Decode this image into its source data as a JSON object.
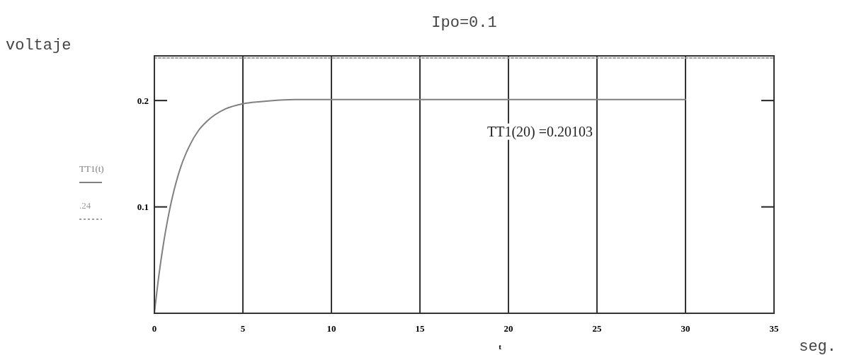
{
  "chart_data": {
    "type": "line",
    "title": "Ipo=0.1",
    "ylabel": "voltaje",
    "xlabel": "t",
    "annotations": [
      {
        "text": "TT1(20) =0.20103",
        "x": 20,
        "y": 0.20103
      },
      "seg."
    ],
    "series": [
      {
        "name": "TT1(t)",
        "color": "#808080",
        "line_style": "solid",
        "x": [
          0,
          0.25,
          0.5,
          0.75,
          1,
          1.5,
          2,
          2.5,
          3,
          4,
          5,
          6,
          8,
          10,
          15,
          20,
          25,
          30
        ],
        "values": [
          0,
          0.035,
          0.064,
          0.088,
          0.108,
          0.138,
          0.158,
          0.172,
          0.181,
          0.192,
          0.197,
          0.199,
          0.201,
          0.201,
          0.201,
          0.201,
          0.201,
          0.201
        ]
      },
      {
        "name": ".24",
        "color": "#a0a0a0",
        "line_style": "dotted",
        "x": [
          0,
          35
        ],
        "values": [
          0.24,
          0.24
        ]
      }
    ],
    "xlim": [
      0,
      35
    ],
    "xticks": [
      0,
      5,
      10,
      15,
      20,
      25,
      30,
      35
    ],
    "ylim": [
      0,
      0.242
    ],
    "yticks": [
      0.1,
      0.2
    ],
    "grid": "x",
    "legend": "left",
    "marker": "none"
  }
}
